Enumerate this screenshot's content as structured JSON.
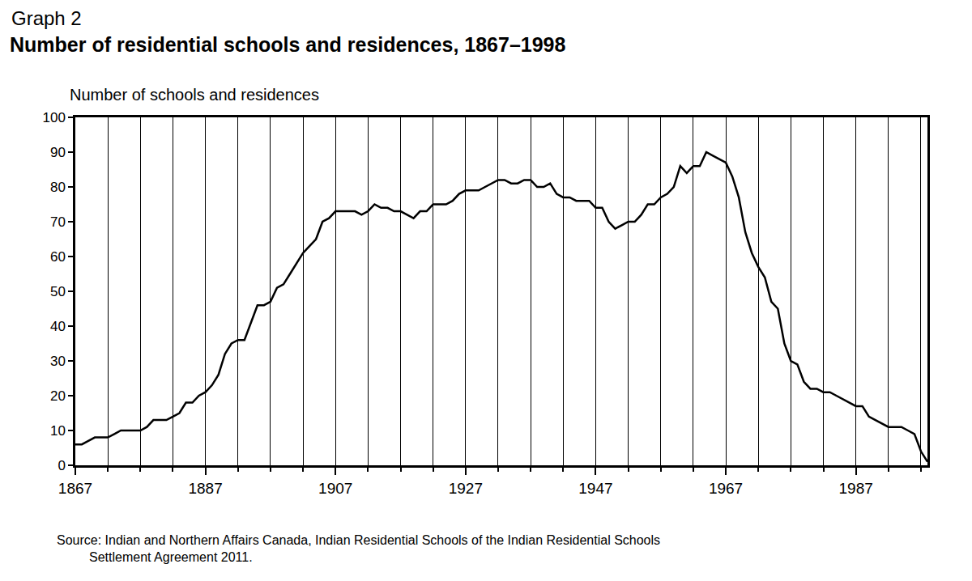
{
  "chart_data": {
    "type": "line",
    "title": "Number of residential schools and residences, 1867–1998",
    "annotations": [
      "Graph 2",
      "Source: Indian and Northern Affairs Canada, Indian Residential Schools of the Indian Residential Schools\nSettlement Agreement 2011."
    ],
    "y_label": "Number of schools and residences",
    "x": [
      1867,
      1868,
      1869,
      1870,
      1871,
      1872,
      1873,
      1874,
      1875,
      1876,
      1877,
      1878,
      1879,
      1880,
      1881,
      1882,
      1883,
      1884,
      1885,
      1886,
      1887,
      1888,
      1889,
      1890,
      1891,
      1892,
      1893,
      1894,
      1895,
      1896,
      1897,
      1898,
      1899,
      1900,
      1901,
      1902,
      1903,
      1904,
      1905,
      1906,
      1907,
      1908,
      1909,
      1910,
      1911,
      1912,
      1913,
      1914,
      1915,
      1916,
      1917,
      1918,
      1919,
      1920,
      1921,
      1922,
      1923,
      1924,
      1925,
      1926,
      1927,
      1928,
      1929,
      1930,
      1931,
      1932,
      1933,
      1934,
      1935,
      1936,
      1937,
      1938,
      1939,
      1940,
      1941,
      1942,
      1943,
      1944,
      1945,
      1946,
      1947,
      1948,
      1949,
      1950,
      1951,
      1952,
      1953,
      1954,
      1955,
      1956,
      1957,
      1958,
      1959,
      1960,
      1961,
      1962,
      1963,
      1964,
      1965,
      1966,
      1967,
      1968,
      1969,
      1970,
      1971,
      1972,
      1973,
      1974,
      1975,
      1976,
      1977,
      1978,
      1979,
      1980,
      1981,
      1982,
      1983,
      1984,
      1985,
      1986,
      1987,
      1988,
      1989,
      1990,
      1991,
      1992,
      1993,
      1994,
      1995,
      1996,
      1997,
      1998
    ],
    "values": [
      6,
      6,
      7,
      8,
      8,
      8,
      9,
      10,
      10,
      10,
      10,
      11,
      13,
      13,
      13,
      14,
      15,
      18,
      18,
      20,
      21,
      23,
      26,
      32,
      35,
      36,
      36,
      41,
      46,
      46,
      47,
      51,
      52,
      55,
      58,
      61,
      63,
      65,
      70,
      71,
      73,
      73,
      73,
      73,
      72,
      73,
      75,
      74,
      74,
      73,
      73,
      72,
      71,
      73,
      73,
      75,
      75,
      75,
      76,
      78,
      79,
      79,
      79,
      80,
      81,
      82,
      82,
      81,
      81,
      82,
      82,
      80,
      80,
      81,
      78,
      77,
      77,
      76,
      76,
      76,
      74,
      74,
      70,
      68,
      69,
      70,
      70,
      72,
      75,
      75,
      77,
      78,
      80,
      86,
      84,
      86,
      86,
      90,
      89,
      88,
      87,
      83,
      77,
      67,
      61,
      57,
      54,
      47,
      45,
      35,
      30,
      29,
      24,
      22,
      22,
      21,
      21,
      20,
      19,
      18,
      17,
      17,
      14,
      13,
      12,
      11,
      11,
      11,
      10,
      9,
      4,
      1
    ],
    "color": "#000000",
    "xlim": [
      1867,
      1998
    ],
    "xticks": [
      1867,
      1887,
      1907,
      1927,
      1947,
      1967,
      1987
    ],
    "ylim": [
      0,
      100
    ],
    "yticks": [
      0,
      10,
      20,
      30,
      40,
      50,
      60,
      70,
      80,
      90,
      100
    ],
    "grid": "x"
  }
}
